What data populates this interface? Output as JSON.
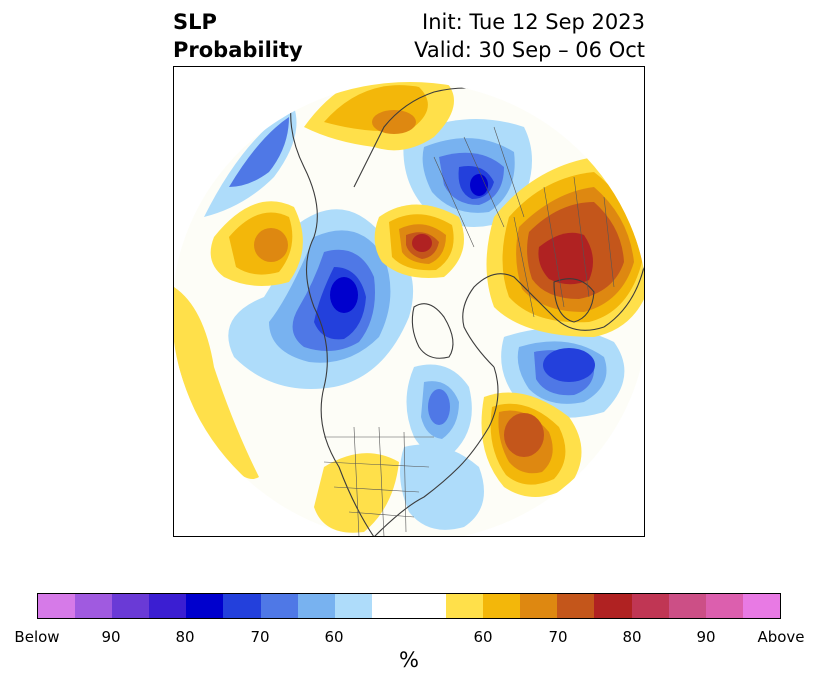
{
  "title": {
    "left_line1": "SLP",
    "left_line2": "Probability",
    "right_line1": "Init: Tue 12 Sep 2023",
    "right_line2": "Valid: 30 Sep – 06 Oct"
  },
  "colorbar": {
    "unit": "%",
    "colors": [
      "#d67ae8",
      "#a05ae0",
      "#6a3ad6",
      "#3b1ed2",
      "#0000cd",
      "#2340dc",
      "#4f78e6",
      "#78b2f0",
      "#aedcfa",
      "#ffffff",
      "#ffffff",
      "#ffe04a",
      "#f3b70a",
      "#de8811",
      "#c4561b",
      "#b02222",
      "#c03654",
      "#cc4f86",
      "#dc5fae",
      "#e87ae4"
    ],
    "tick_labels": [
      "Below",
      "90",
      "80",
      "70",
      "60",
      "60",
      "70",
      "80",
      "90",
      "Above"
    ]
  }
}
